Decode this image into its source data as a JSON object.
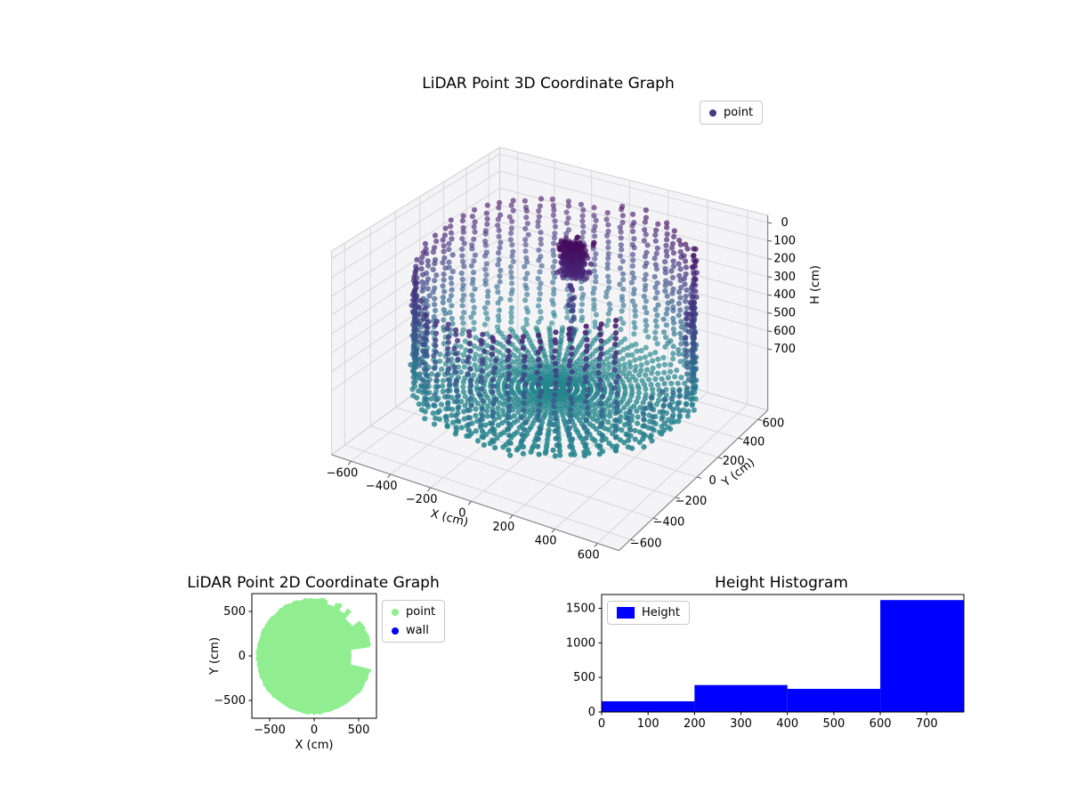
{
  "figure": {
    "background_color": "#ffffff"
  },
  "chart_data": [
    {
      "type": "scatter",
      "projection": "3d",
      "title": "LiDAR Point 3D Coordinate Graph",
      "xlabel": "X (cm)",
      "ylabel": "Y (cm)",
      "zlabel": "H (cm)",
      "xlim": [
        -700,
        700
      ],
      "ylim": [
        -700,
        700
      ],
      "zlim": [
        -40,
        1040
      ],
      "zaxis_inverted": true,
      "xticks": [
        -600,
        -400,
        -200,
        0,
        200,
        400,
        600
      ],
      "yticks": [
        -600,
        -400,
        -200,
        0,
        200,
        400,
        600
      ],
      "zticks": [
        0,
        100,
        200,
        300,
        400,
        500,
        600,
        700
      ],
      "legend": {
        "entries": [
          "point"
        ],
        "marker_color": "#433a82",
        "location": "upper right"
      },
      "colormap": "viridis",
      "color_encoding": "height H in cm: 0 near ceiling = dark purple, 800 at floor = teal",
      "point_cloud_model": {
        "wall_ring": {
          "radius_cm": 620,
          "columns": 60,
          "angle_step_deg": 6,
          "h_top_cm_range": [
            90,
            250
          ],
          "h_bottom_cm": 800,
          "h_step_cm": 32,
          "gap_angle_deg": [
            -32,
            4
          ],
          "tall_purple_sector_deg": [
            25,
            95
          ]
        },
        "floor_spokes": {
          "spokes": 60,
          "angle_step_deg": 6,
          "h_cm": 800,
          "r_min_cm": 40,
          "r_max_cm": 600,
          "r_step_cm": 30
        },
        "ceiling_cluster": {
          "center_cm": [
            40,
            90
          ],
          "sigma_cm": 50,
          "h_range_cm": [
            40,
            230
          ],
          "count": 280
        },
        "hanging_trail": {
          "xy_cm": [
            70,
            30
          ],
          "h_range_cm": [
            230,
            560
          ],
          "count": 26
        }
      }
    },
    {
      "type": "scatter",
      "projection": "2d",
      "title": "LiDAR Point 2D Coordinate Graph",
      "xlabel": "X (cm)",
      "ylabel": "Y (cm)",
      "xlim": [
        -700,
        700
      ],
      "ylim": [
        -700,
        700
      ],
      "xticks": [
        -500,
        0,
        500
      ],
      "yticks": [
        -500,
        0,
        500
      ],
      "series": [
        {
          "name": "point",
          "color": "#90ee90",
          "model": {
            "disk_center_cm": [
              0,
              0
            ],
            "disk_radius_cm": 630,
            "notches": [
              {
                "angle_deg": [
                  -13,
                  9
                ],
                "r_cm": [
                  420,
                  665
                ]
              },
              {
                "angle_deg": [
                  38,
                  50
                ],
                "r_cm": [
                  545,
                  665
                ]
              },
              {
                "angle_deg": [
                  55,
                  61
                ],
                "r_cm": [
                  585,
                  665
                ]
              },
              {
                "angle_deg": [
                  68,
                  76
                ],
                "r_cm": [
                  600,
                  665
                ]
              }
            ]
          }
        },
        {
          "name": "wall",
          "color": "#0000ff",
          "model": {
            "points": []
          }
        }
      ]
    },
    {
      "type": "bar",
      "title": "Height Histogram",
      "legend": [
        "Height"
      ],
      "bar_color": "#0000ff",
      "bin_edges": [
        0,
        200,
        400,
        600,
        780
      ],
      "counts": [
        155,
        390,
        335,
        1620
      ],
      "xlim": [
        0,
        780
      ],
      "ylim": [
        0,
        1700
      ],
      "xticks": [
        0,
        100,
        200,
        300,
        400,
        500,
        600,
        700
      ],
      "yticks": [
        0,
        500,
        1000,
        1500
      ]
    }
  ]
}
